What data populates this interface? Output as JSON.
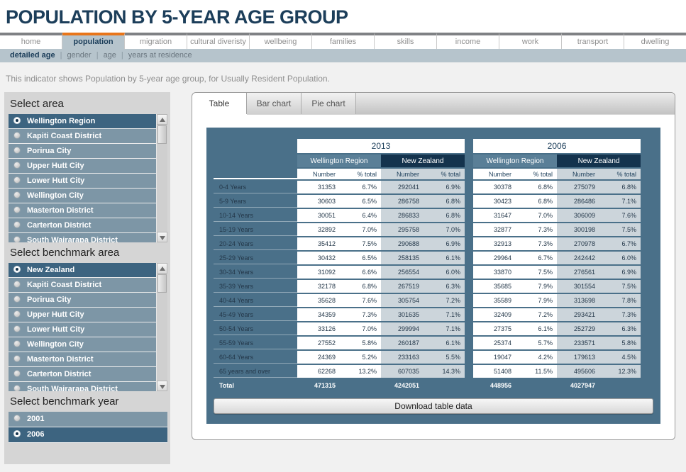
{
  "header": {
    "title": "POPULATION BY 5-YEAR AGE GROUP"
  },
  "nav": {
    "tabs": [
      "home",
      "population",
      "migration",
      "cultural diveristy",
      "wellbeing",
      "families",
      "skills",
      "income",
      "work",
      "transport",
      "dwelling"
    ],
    "active_tab": "population",
    "subnav_items": [
      "detailed age",
      "gender",
      "age",
      "years at residence"
    ],
    "active_subnav": "detailed age"
  },
  "description": "This indicator shows Population by 5-year age group, for Usually Resident Population.",
  "sidebar": {
    "select_area": {
      "title": "Select area",
      "items": [
        "Wellington Region",
        "Kapiti Coast District",
        "Porirua City",
        "Upper Hutt City",
        "Lower Hutt City",
        "Wellington City",
        "Masterton District",
        "Carterton District",
        "South Wairarapa District"
      ],
      "selected": "Wellington Region",
      "scrollbar": true
    },
    "select_benchmark_area": {
      "title": "Select benchmark area",
      "items": [
        "New Zealand",
        "Kapiti Coast District",
        "Porirua City",
        "Upper Hutt City",
        "Lower Hutt City",
        "Wellington City",
        "Masterton District",
        "Carterton District",
        "South Wairarapa District"
      ],
      "selected": "New Zealand",
      "scrollbar": true
    },
    "select_benchmark_year": {
      "title": "Select benchmark year",
      "items": [
        "2001",
        "2006"
      ],
      "selected": "2006",
      "scrollbar": false
    }
  },
  "main": {
    "view_tabs": [
      "Table",
      "Bar chart",
      "Pie chart"
    ],
    "active_view_tab": "Table",
    "download_button_label": "Download table data"
  },
  "table": {
    "year_groups": [
      "2013",
      "2006"
    ],
    "region_columns": [
      "Wellington Region",
      "New Zealand"
    ],
    "measure_columns": [
      "Number",
      "% total"
    ],
    "rows": [
      {
        "label": "0-4 Years",
        "values": [
          "31353",
          "6.7%",
          "292041",
          "6.9%",
          "30378",
          "6.8%",
          "275079",
          "6.8%"
        ]
      },
      {
        "label": "5-9 Years",
        "values": [
          "30603",
          "6.5%",
          "286758",
          "6.8%",
          "30423",
          "6.8%",
          "286486",
          "7.1%"
        ]
      },
      {
        "label": "10-14 Years",
        "values": [
          "30051",
          "6.4%",
          "286833",
          "6.8%",
          "31647",
          "7.0%",
          "306009",
          "7.6%"
        ]
      },
      {
        "label": "15-19 Years",
        "values": [
          "32892",
          "7.0%",
          "295758",
          "7.0%",
          "32877",
          "7.3%",
          "300198",
          "7.5%"
        ]
      },
      {
        "label": "20-24 Years",
        "values": [
          "35412",
          "7.5%",
          "290688",
          "6.9%",
          "32913",
          "7.3%",
          "270978",
          "6.7%"
        ]
      },
      {
        "label": "25-29 Years",
        "values": [
          "30432",
          "6.5%",
          "258135",
          "6.1%",
          "29964",
          "6.7%",
          "242442",
          "6.0%"
        ]
      },
      {
        "label": "30-34 Years",
        "values": [
          "31092",
          "6.6%",
          "256554",
          "6.0%",
          "33870",
          "7.5%",
          "276561",
          "6.9%"
        ]
      },
      {
        "label": "35-39 Years",
        "values": [
          "32178",
          "6.8%",
          "267519",
          "6.3%",
          "35685",
          "7.9%",
          "301554",
          "7.5%"
        ]
      },
      {
        "label": "40-44 Years",
        "values": [
          "35628",
          "7.6%",
          "305754",
          "7.2%",
          "35589",
          "7.9%",
          "313698",
          "7.8%"
        ]
      },
      {
        "label": "45-49 Years",
        "values": [
          "34359",
          "7.3%",
          "301635",
          "7.1%",
          "32409",
          "7.2%",
          "293421",
          "7.3%"
        ]
      },
      {
        "label": "50-54 Years",
        "values": [
          "33126",
          "7.0%",
          "299994",
          "7.1%",
          "27375",
          "6.1%",
          "252729",
          "6.3%"
        ]
      },
      {
        "label": "55-59 Years",
        "values": [
          "27552",
          "5.8%",
          "260187",
          "6.1%",
          "25374",
          "5.7%",
          "233571",
          "5.8%"
        ]
      },
      {
        "label": "60-64 Years",
        "values": [
          "24369",
          "5.2%",
          "233163",
          "5.5%",
          "19047",
          "4.2%",
          "179613",
          "4.5%"
        ]
      },
      {
        "label": "65 years and over",
        "values": [
          "62268",
          "13.2%",
          "607035",
          "14.3%",
          "51408",
          "11.5%",
          "495606",
          "12.3%"
        ]
      }
    ],
    "total_row": {
      "label": "Total",
      "values": [
        "471315",
        "",
        "4242051",
        "",
        "448956",
        "",
        "4027947",
        ""
      ]
    }
  },
  "colors": {
    "title_navy": "#1c3e5a",
    "accent_orange": "#e8751a",
    "nav_strip_gray": "#7f8184",
    "steel_light": "#b6c4cc",
    "list_item": "#7d96a6",
    "list_item_selected": "#3d6480",
    "panel_blue": "#4a7089",
    "wellington_header": "#5a7f97",
    "new_zealand_header": "#14334d",
    "nz_column_bg": "#ccd5db"
  }
}
